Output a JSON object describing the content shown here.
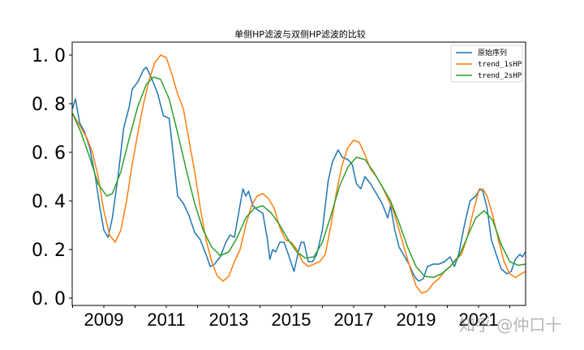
{
  "chart_data": {
    "type": "line",
    "title": "单侧HP滤波与双侧HP滤波的比较",
    "xlabel": "",
    "ylabel": "",
    "xlim": [
      2008.0,
      2022.5
    ],
    "ylim": [
      -0.03,
      1.05
    ],
    "x_ticks": [
      "2009",
      "2011",
      "2013",
      "2015",
      "2017",
      "2019",
      "2021"
    ],
    "y_ticks": [
      "0.0",
      "0.2",
      "0.4",
      "0.6",
      "0.8",
      "1.0"
    ],
    "grid": false,
    "legend_position": "upper right",
    "series": [
      {
        "name": "原始序列",
        "color": "#1f77b4",
        "points": [
          [
            2008.0,
            0.78
          ],
          [
            2008.1,
            0.82
          ],
          [
            2008.25,
            0.72
          ],
          [
            2008.4,
            0.69
          ],
          [
            2008.6,
            0.62
          ],
          [
            2008.8,
            0.5
          ],
          [
            2008.95,
            0.38
          ],
          [
            2009.1,
            0.28
          ],
          [
            2009.25,
            0.25
          ],
          [
            2009.4,
            0.33
          ],
          [
            2009.6,
            0.5
          ],
          [
            2009.8,
            0.7
          ],
          [
            2010.0,
            0.79
          ],
          [
            2010.1,
            0.86
          ],
          [
            2010.3,
            0.89
          ],
          [
            2010.5,
            0.94
          ],
          [
            2010.6,
            0.95
          ],
          [
            2010.8,
            0.9
          ],
          [
            2011.0,
            0.84
          ],
          [
            2011.2,
            0.75
          ],
          [
            2011.4,
            0.74
          ],
          [
            2011.5,
            0.64
          ],
          [
            2011.7,
            0.42
          ],
          [
            2011.9,
            0.39
          ],
          [
            2012.1,
            0.34
          ],
          [
            2012.3,
            0.27
          ],
          [
            2012.5,
            0.24
          ],
          [
            2012.7,
            0.18
          ],
          [
            2012.85,
            0.13
          ],
          [
            2013.0,
            0.14
          ],
          [
            2013.2,
            0.17
          ],
          [
            2013.4,
            0.23
          ],
          [
            2013.55,
            0.26
          ],
          [
            2013.7,
            0.25
          ],
          [
            2013.85,
            0.35
          ],
          [
            2014.0,
            0.45
          ],
          [
            2014.1,
            0.42
          ],
          [
            2014.2,
            0.44
          ],
          [
            2014.35,
            0.38
          ],
          [
            2014.55,
            0.36
          ],
          [
            2014.7,
            0.35
          ],
          [
            2014.85,
            0.25
          ],
          [
            2014.95,
            0.16
          ],
          [
            2015.05,
            0.2
          ],
          [
            2015.15,
            0.19
          ],
          [
            2015.3,
            0.23
          ],
          [
            2015.45,
            0.23
          ],
          [
            2015.6,
            0.18
          ],
          [
            2015.8,
            0.11
          ],
          [
            2015.95,
            0.19
          ],
          [
            2016.05,
            0.23
          ],
          [
            2016.15,
            0.23
          ],
          [
            2016.3,
            0.15
          ],
          [
            2016.45,
            0.15
          ],
          [
            2016.6,
            0.18
          ],
          [
            2016.8,
            0.28
          ],
          [
            2017.0,
            0.48
          ],
          [
            2017.15,
            0.56
          ],
          [
            2017.35,
            0.61
          ],
          [
            2017.5,
            0.58
          ],
          [
            2017.7,
            0.57
          ],
          [
            2017.85,
            0.55
          ],
          [
            2018.0,
            0.47
          ],
          [
            2018.15,
            0.45
          ],
          [
            2018.3,
            0.5
          ],
          [
            2018.5,
            0.47
          ],
          [
            2018.7,
            0.43
          ],
          [
            2018.9,
            0.39
          ],
          [
            2019.1,
            0.33
          ],
          [
            2019.2,
            0.38
          ],
          [
            2019.35,
            0.28
          ],
          [
            2019.5,
            0.21
          ],
          [
            2019.7,
            0.17
          ],
          [
            2019.85,
            0.14
          ],
          [
            2020.0,
            0.1
          ],
          [
            2020.1,
            0.08
          ],
          [
            2020.2,
            0.07
          ],
          [
            2020.35,
            0.08
          ],
          [
            2020.5,
            0.13
          ],
          [
            2020.7,
            0.14
          ],
          [
            2020.9,
            0.14
          ],
          [
            2021.1,
            0.15
          ],
          [
            2021.3,
            0.17
          ],
          [
            2021.45,
            0.13
          ],
          [
            2021.6,
            0.18
          ],
          [
            2021.8,
            0.3
          ],
          [
            2022.0,
            0.4
          ],
          [
            2022.2,
            0.42
          ],
          [
            2022.35,
            0.45
          ],
          [
            2022.45,
            0.44
          ],
          [
            2022.6,
            0.37
          ],
          [
            2022.75,
            0.24
          ],
          [
            2022.95,
            0.17
          ],
          [
            2023.1,
            0.12
          ],
          [
            2023.3,
            0.1
          ],
          [
            2023.45,
            0.11
          ],
          [
            2023.6,
            0.16
          ],
          [
            2023.75,
            0.18
          ],
          [
            2023.85,
            0.17
          ],
          [
            2023.95,
            0.19
          ]
        ]
      },
      {
        "name": "trend_1sHP",
        "color": "#ff7f0e",
        "points": [
          [
            2008.0,
            0.76
          ],
          [
            2008.3,
            0.7
          ],
          [
            2008.5,
            0.66
          ],
          [
            2008.7,
            0.6
          ],
          [
            2008.9,
            0.5
          ],
          [
            2009.1,
            0.36
          ],
          [
            2009.3,
            0.26
          ],
          [
            2009.5,
            0.23
          ],
          [
            2009.7,
            0.28
          ],
          [
            2009.9,
            0.4
          ],
          [
            2010.1,
            0.55
          ],
          [
            2010.3,
            0.68
          ],
          [
            2010.5,
            0.8
          ],
          [
            2010.7,
            0.9
          ],
          [
            2010.9,
            0.97
          ],
          [
            2011.1,
            1.0
          ],
          [
            2011.3,
            0.99
          ],
          [
            2011.5,
            0.92
          ],
          [
            2011.7,
            0.84
          ],
          [
            2011.9,
            0.78
          ],
          [
            2012.1,
            0.65
          ],
          [
            2012.3,
            0.52
          ],
          [
            2012.5,
            0.37
          ],
          [
            2012.7,
            0.24
          ],
          [
            2012.9,
            0.15
          ],
          [
            2013.1,
            0.09
          ],
          [
            2013.3,
            0.07
          ],
          [
            2013.5,
            0.09
          ],
          [
            2013.7,
            0.15
          ],
          [
            2013.9,
            0.2
          ],
          [
            2014.1,
            0.3
          ],
          [
            2014.3,
            0.38
          ],
          [
            2014.5,
            0.42
          ],
          [
            2014.7,
            0.43
          ],
          [
            2014.9,
            0.41
          ],
          [
            2015.1,
            0.37
          ],
          [
            2015.3,
            0.29
          ],
          [
            2015.5,
            0.24
          ],
          [
            2015.7,
            0.23
          ],
          [
            2015.9,
            0.2
          ],
          [
            2016.1,
            0.15
          ],
          [
            2016.3,
            0.13
          ],
          [
            2016.5,
            0.14
          ],
          [
            2016.7,
            0.15
          ],
          [
            2016.9,
            0.18
          ],
          [
            2017.1,
            0.3
          ],
          [
            2017.3,
            0.44
          ],
          [
            2017.5,
            0.55
          ],
          [
            2017.7,
            0.62
          ],
          [
            2017.9,
            0.65
          ],
          [
            2018.1,
            0.64
          ],
          [
            2018.3,
            0.59
          ],
          [
            2018.5,
            0.53
          ],
          [
            2018.7,
            0.5
          ],
          [
            2018.9,
            0.46
          ],
          [
            2019.1,
            0.41
          ],
          [
            2019.3,
            0.36
          ],
          [
            2019.5,
            0.28
          ],
          [
            2019.7,
            0.2
          ],
          [
            2019.9,
            0.12
          ],
          [
            2020.1,
            0.05
          ],
          [
            2020.3,
            0.02
          ],
          [
            2020.5,
            0.03
          ],
          [
            2020.7,
            0.06
          ],
          [
            2020.9,
            0.08
          ],
          [
            2021.1,
            0.11
          ],
          [
            2021.3,
            0.13
          ],
          [
            2021.5,
            0.16
          ],
          [
            2021.7,
            0.18
          ],
          [
            2021.9,
            0.25
          ],
          [
            2022.1,
            0.35
          ],
          [
            2022.3,
            0.44
          ],
          [
            2022.45,
            0.45
          ],
          [
            2022.6,
            0.42
          ],
          [
            2022.8,
            0.34
          ],
          [
            2023.0,
            0.24
          ],
          [
            2023.2,
            0.15
          ],
          [
            2023.4,
            0.1
          ],
          [
            2023.6,
            0.085
          ],
          [
            2023.8,
            0.1
          ],
          [
            2023.95,
            0.11
          ]
        ]
      },
      {
        "name": "trend_2sHP",
        "color": "#2ca02c",
        "points": [
          [
            2008.0,
            0.76
          ],
          [
            2008.3,
            0.68
          ],
          [
            2008.6,
            0.58
          ],
          [
            2008.9,
            0.47
          ],
          [
            2009.2,
            0.42
          ],
          [
            2009.4,
            0.43
          ],
          [
            2009.7,
            0.52
          ],
          [
            2010.0,
            0.66
          ],
          [
            2010.3,
            0.79
          ],
          [
            2010.6,
            0.88
          ],
          [
            2010.85,
            0.91
          ],
          [
            2011.1,
            0.9
          ],
          [
            2011.4,
            0.82
          ],
          [
            2011.7,
            0.68
          ],
          [
            2012.0,
            0.53
          ],
          [
            2012.3,
            0.39
          ],
          [
            2012.6,
            0.28
          ],
          [
            2012.9,
            0.21
          ],
          [
            2013.2,
            0.175
          ],
          [
            2013.5,
            0.19
          ],
          [
            2013.8,
            0.25
          ],
          [
            2014.1,
            0.33
          ],
          [
            2014.4,
            0.37
          ],
          [
            2014.7,
            0.38
          ],
          [
            2015.0,
            0.35
          ],
          [
            2015.3,
            0.3
          ],
          [
            2015.6,
            0.24
          ],
          [
            2015.9,
            0.19
          ],
          [
            2016.2,
            0.165
          ],
          [
            2016.5,
            0.17
          ],
          [
            2016.8,
            0.23
          ],
          [
            2017.1,
            0.34
          ],
          [
            2017.4,
            0.46
          ],
          [
            2017.7,
            0.54
          ],
          [
            2018.0,
            0.58
          ],
          [
            2018.3,
            0.57
          ],
          [
            2018.6,
            0.52
          ],
          [
            2018.9,
            0.46
          ],
          [
            2019.2,
            0.4
          ],
          [
            2019.5,
            0.31
          ],
          [
            2019.8,
            0.21
          ],
          [
            2020.1,
            0.13
          ],
          [
            2020.4,
            0.09
          ],
          [
            2020.7,
            0.085
          ],
          [
            2021.0,
            0.1
          ],
          [
            2021.3,
            0.13
          ],
          [
            2021.6,
            0.17
          ],
          [
            2021.9,
            0.25
          ],
          [
            2022.2,
            0.33
          ],
          [
            2022.5,
            0.36
          ],
          [
            2022.8,
            0.32
          ],
          [
            2023.1,
            0.22
          ],
          [
            2023.4,
            0.15
          ],
          [
            2023.7,
            0.135
          ],
          [
            2023.95,
            0.14
          ]
        ]
      }
    ]
  },
  "legend": {
    "items": [
      "原始序列",
      "trend_1sHP",
      "trend_2sHP"
    ]
  },
  "watermark": "知乎 @仲口十"
}
